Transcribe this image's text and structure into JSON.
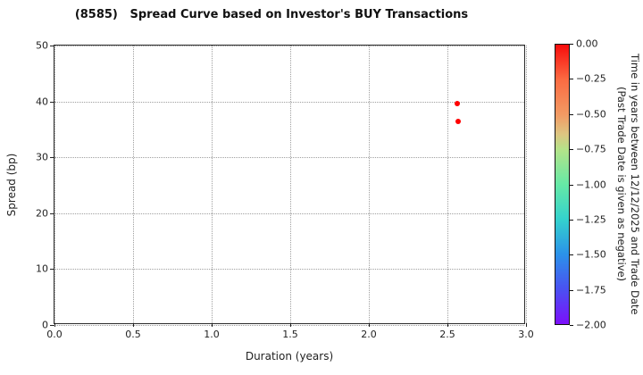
{
  "chart_data": {
    "type": "scatter",
    "title": "(8585)   Spread Curve based on Investor's BUY Transactions",
    "xlabel": "Duration (years)",
    "ylabel": "Spread (bp)",
    "xlim": [
      0.0,
      3.0
    ],
    "ylim": [
      0,
      50
    ],
    "xticks": [
      0.0,
      0.5,
      1.0,
      1.5,
      2.0,
      2.5,
      3.0
    ],
    "xtick_labels": [
      "0.0",
      "0.5",
      "1.0",
      "1.5",
      "2.0",
      "2.5",
      "3.0"
    ],
    "yticks": [
      0,
      10,
      20,
      30,
      40,
      50
    ],
    "ytick_labels": [
      "0",
      "10",
      "20",
      "30",
      "40",
      "50"
    ],
    "grid": "dotted",
    "legend": "none",
    "points": [
      {
        "x": 2.56,
        "y": 39.6,
        "value": 0.0,
        "color": "#ff0000"
      },
      {
        "x": 2.57,
        "y": 36.4,
        "value": 0.0,
        "color": "#ff0000"
      }
    ],
    "colorbar": {
      "label_line1": "Time in years between 12/12/2025 and Trade Date",
      "label_line2": "(Past Trade Date is given as negative)",
      "range": [
        0.0,
        -2.0
      ],
      "tick_values": [
        0.0,
        -0.25,
        -0.5,
        -0.75,
        -1.0,
        -1.25,
        -1.5,
        -1.75,
        -2.0
      ],
      "ticks": [
        "0.00",
        "−0.25",
        "−0.50",
        "−0.75",
        "−1.00",
        "−1.25",
        "−1.50",
        "−1.75",
        "−2.00"
      ],
      "colormap": "rainbow",
      "gradient_stops": [
        {
          "pos": 0.0,
          "color": "#f80c0c"
        },
        {
          "pos": 0.125,
          "color": "#fb6b42"
        },
        {
          "pos": 0.25,
          "color": "#f29a63"
        },
        {
          "pos": 0.32,
          "color": "#ddc581"
        },
        {
          "pos": 0.375,
          "color": "#b4e389"
        },
        {
          "pos": 0.5,
          "color": "#66e9a6"
        },
        {
          "pos": 0.625,
          "color": "#34d2cd"
        },
        {
          "pos": 0.75,
          "color": "#2b92e9"
        },
        {
          "pos": 0.875,
          "color": "#4a51f2"
        },
        {
          "pos": 1.0,
          "color": "#7c0ffb"
        }
      ]
    }
  }
}
